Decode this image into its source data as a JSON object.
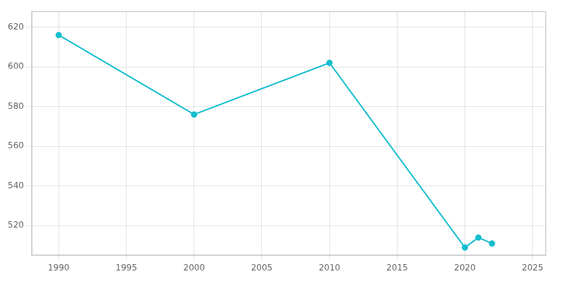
{
  "chart_data": {
    "type": "line",
    "x": [
      1990,
      2000,
      2010,
      2020,
      2021,
      2022
    ],
    "values": [
      616,
      576,
      602,
      509,
      514,
      511
    ],
    "color": "#17BECF",
    "marker": "circle",
    "xlim": [
      1988,
      2026
    ],
    "ylim": [
      505,
      628
    ],
    "xticks": [
      1990,
      1995,
      2000,
      2005,
      2010,
      2015,
      2020,
      2025
    ],
    "yticks": [
      520,
      540,
      560,
      580,
      600,
      620
    ],
    "grid": true
  }
}
